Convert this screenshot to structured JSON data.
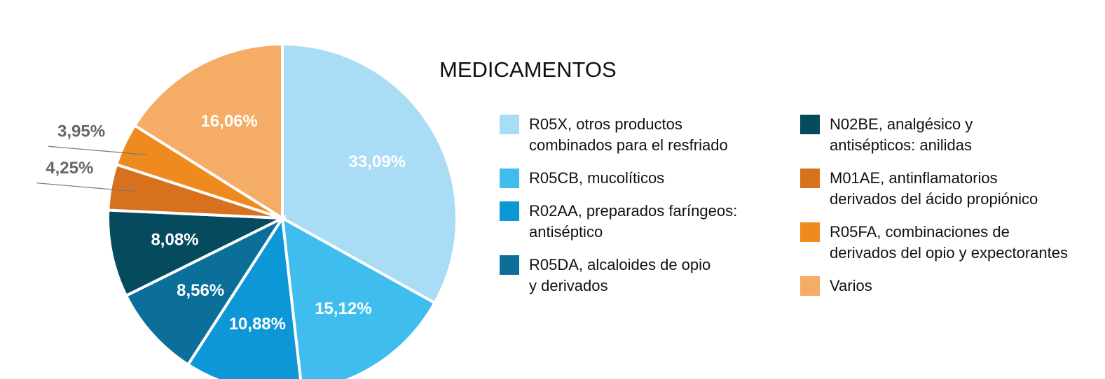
{
  "chart_data": {
    "type": "pie",
    "title": "MEDICAMENTOS",
    "categories": [
      "R05X, otros productos\ncombinados para el resfriado",
      "R05CB, mucolíticos",
      "R02AA, preparados faríngeos:\nantiséptico",
      "R05DA, alcaloides de opio\ny derivados",
      "N02BE, analgésico y\nantisépticos: anilidas",
      "M01AE, antinflamatorios\nderivados del ácido propiónico",
      "R05FA, combinaciones de\nderivados del opio y expectorantes",
      "Varios"
    ],
    "values": [
      33.09,
      15.12,
      10.88,
      8.56,
      8.08,
      4.25,
      3.95,
      16.06
    ],
    "value_labels": [
      "33,09%",
      "15,12%",
      "10,88%",
      "8,56%",
      "8,08%",
      "4,25%",
      "3,95%",
      "16,06%"
    ],
    "colors": [
      "#a9dcf5",
      "#3fbdef",
      "#0e97d6",
      "#0b6f99",
      "#064a5e",
      "#d8711d",
      "#ef8a1f",
      "#f5ac66"
    ]
  }
}
